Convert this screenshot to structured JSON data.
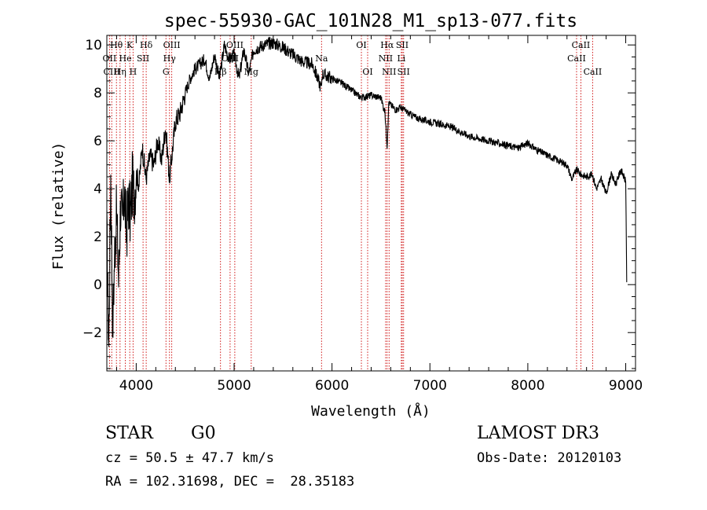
{
  "chart_data": {
    "type": "line",
    "title": "spec-55930-GAC_101N28_M1_sp13-077.fits",
    "xlabel": "Wavelength (Å)",
    "ylabel": "Flux (relative)",
    "xlim": [
      3700,
      9100
    ],
    "ylim": [
      -3.6,
      10.4
    ],
    "xticks": [
      4000,
      5000,
      6000,
      7000,
      8000,
      9000
    ],
    "yticks": [
      -2,
      0,
      2,
      4,
      6,
      8,
      10
    ],
    "grid": false,
    "series": [
      {
        "name": "spectrum",
        "x": [
          3700,
          3720,
          3740,
          3760,
          3780,
          3800,
          3820,
          3840,
          3860,
          3880,
          3900,
          3920,
          3940,
          3960,
          3980,
          4000,
          4030,
          4060,
          4100,
          4140,
          4180,
          4220,
          4260,
          4300,
          4340,
          4400,
          4450,
          4500,
          4550,
          4600,
          4650,
          4700,
          4750,
          4800,
          4850,
          4900,
          4950,
          5000,
          5050,
          5100,
          5150,
          5200,
          5300,
          5400,
          5500,
          5600,
          5700,
          5800,
          5890,
          5900,
          6000,
          6100,
          6200,
          6300,
          6400,
          6500,
          6540,
          6563,
          6580,
          6600,
          6650,
          6700,
          6800,
          6900,
          7000,
          7100,
          7200,
          7300,
          7400,
          7500,
          7600,
          7700,
          7800,
          7900,
          8000,
          8100,
          8200,
          8300,
          8400,
          8450,
          8500,
          8540,
          8600,
          8660,
          8700,
          8750,
          8800,
          8850,
          8900,
          8950,
          8980,
          9000,
          9010
        ],
        "y": [
          2.0,
          -2.6,
          4.6,
          -1.8,
          1.4,
          3.0,
          0.2,
          3.4,
          2.4,
          4.0,
          2.0,
          3.6,
          2.8,
          4.2,
          3.8,
          4.6,
          4.2,
          5.8,
          4.4,
          5.4,
          5.0,
          6.0,
          5.2,
          6.6,
          4.4,
          6.8,
          7.2,
          8.0,
          8.6,
          9.0,
          9.2,
          9.4,
          8.6,
          9.6,
          8.6,
          10.0,
          9.4,
          9.6,
          8.6,
          9.8,
          8.8,
          9.8,
          10.0,
          10.1,
          9.9,
          9.6,
          9.3,
          9.2,
          8.2,
          8.8,
          8.6,
          8.4,
          8.1,
          7.8,
          7.9,
          7.8,
          7.2,
          5.8,
          7.6,
          7.5,
          7.3,
          7.4,
          7.1,
          6.9,
          6.8,
          6.7,
          6.6,
          6.4,
          6.2,
          6.1,
          6.0,
          5.9,
          5.8,
          5.7,
          5.9,
          5.6,
          5.4,
          5.2,
          5.0,
          4.4,
          4.8,
          4.6,
          4.5,
          4.6,
          4.0,
          4.4,
          3.8,
          4.6,
          4.2,
          4.8,
          4.5,
          4.3,
          0.1
        ]
      }
    ],
    "lines": [
      {
        "label": "Hθ",
        "x": 3798,
        "row": 0
      },
      {
        "label": "K",
        "x": 3934,
        "row": 0
      },
      {
        "label": "Hδ",
        "x": 4102,
        "row": 0
      },
      {
        "label": "OIII",
        "x": 4363,
        "row": 0
      },
      {
        "label": "OIII",
        "x": 5007,
        "row": 0
      },
      {
        "label": "OI",
        "x": 6300,
        "row": 0
      },
      {
        "label": "Hα",
        "x": 6563,
        "row": 0
      },
      {
        "label": "SII",
        "x": 6717,
        "row": 0
      },
      {
        "label": "CaII",
        "x": 8542,
        "row": 0
      },
      {
        "label": "OII",
        "x": 3727,
        "row": 1
      },
      {
        "label": "He",
        "x": 3889,
        "row": 1
      },
      {
        "label": "SII",
        "x": 4070,
        "row": 1
      },
      {
        "label": "Hγ",
        "x": 4340,
        "row": 1
      },
      {
        "label": "OIII",
        "x": 4959,
        "row": 1
      },
      {
        "label": "Na",
        "x": 5893,
        "row": 1
      },
      {
        "label": "NII",
        "x": 6548,
        "row": 1
      },
      {
        "label": "Li",
        "x": 6708,
        "row": 1
      },
      {
        "label": "CaII",
        "x": 8498,
        "row": 1
      },
      {
        "label": "CIII",
        "x": 3750,
        "row": 2
      },
      {
        "label": "Hη",
        "x": 3835,
        "row": 2
      },
      {
        "label": "H",
        "x": 3968,
        "row": 2
      },
      {
        "label": "G",
        "x": 4304,
        "row": 2
      },
      {
        "label": "Hβ",
        "x": 4861,
        "row": 2
      },
      {
        "label": "Mg",
        "x": 5175,
        "row": 2
      },
      {
        "label": "OI",
        "x": 6364,
        "row": 2
      },
      {
        "label": "NII",
        "x": 6583,
        "row": 2
      },
      {
        "label": "SII",
        "x": 6731,
        "row": 2
      },
      {
        "label": "CaII",
        "x": 8662,
        "row": 2
      }
    ]
  },
  "info": {
    "object_class": "STAR",
    "subclass": "G0",
    "survey": "LAMOST DR3",
    "redshift": "cz = 50.5 ± 47.7 km/s",
    "obs_date": "Obs-Date: 20120103",
    "coords": "RA = 102.31698, DEC =  28.35183"
  }
}
